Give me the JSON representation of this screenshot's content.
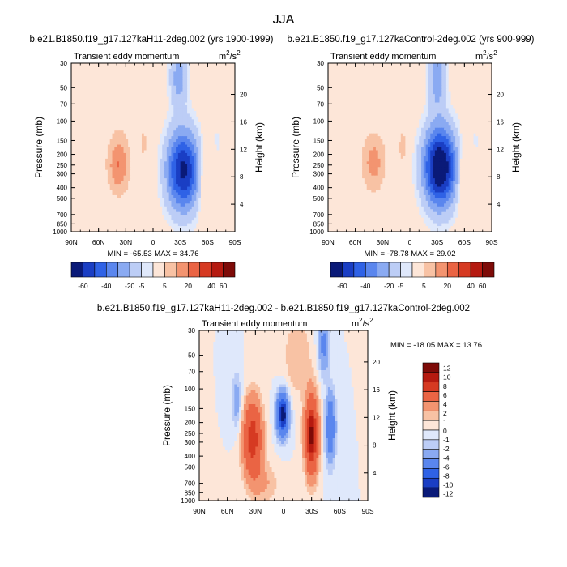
{
  "figure": {
    "title": "JJA"
  },
  "colors": {
    "palette": [
      "#0a1a78",
      "#1a3ec4",
      "#2f62e6",
      "#5a86ee",
      "#8aaaf2",
      "#bccdf6",
      "#dfe8fb",
      "#fde6d8",
      "#f8c2a4",
      "#f39470",
      "#ea6444",
      "#d63a22",
      "#b51a10",
      "#7e0b08"
    ],
    "axis": "#000000"
  },
  "chart_data": [
    {
      "type": "heatmap",
      "id": "panel-a",
      "title": "b.e21.B1850.f19_g17.127kaH11-2deg.002 (yrs 1900-1999)",
      "subtitle_left": "Transient eddy momentum",
      "units": "m²/s²",
      "units_base": "m",
      "units_mid": "/s",
      "units_sup": "2",
      "xlabel": "",
      "ylabel": "Pressure (mb)",
      "y2label": "Height (km)",
      "x_ticks": [
        "90N",
        "60N",
        "30N",
        "0",
        "30S",
        "60S",
        "90S"
      ],
      "y_ticks": [
        "30",
        "50",
        "70",
        "100",
        "150",
        "200",
        "250",
        "300",
        "400",
        "500",
        "700",
        "850",
        "1000"
      ],
      "y2_ticks": [
        "20",
        "16",
        "12",
        "8",
        "4"
      ],
      "stats": "MIN = -65.53   MAX =  34.76",
      "min": -65.53,
      "max": 34.76,
      "features": [
        {
          "lat": 38,
          "p": 250,
          "value": 30,
          "sx": 9,
          "sy": 0.45
        },
        {
          "lat": 10,
          "p": 160,
          "value": 12,
          "sx": 4,
          "sy": 0.3
        },
        {
          "lat": -33,
          "p": 280,
          "value": -63,
          "sx": 13,
          "sy": 0.6
        },
        {
          "lat": -28,
          "p": 40,
          "value": -25,
          "sx": 7,
          "sy": 0.45
        },
        {
          "lat": -58,
          "p": 320,
          "value": 18,
          "sx": 5,
          "sy": 0.55
        },
        {
          "lat": -70,
          "p": 150,
          "value": -5,
          "sx": 8,
          "sy": 0.6
        },
        {
          "lat": 30,
          "p": 50,
          "value": 3,
          "sx": 15,
          "sy": 0.9
        },
        {
          "lat": 75,
          "p": 200,
          "value": -3,
          "sx": 8,
          "sy": 1.0
        }
      ]
    },
    {
      "type": "heatmap",
      "id": "panel-b",
      "title": "b.e21.B1850.f19_g17.127kaControl-2deg.002 (yrs 900-999)",
      "subtitle_left": "Transient eddy momentum",
      "units": "m²/s²",
      "units_base": "m",
      "units_mid": "/s",
      "units_sup": "2",
      "xlabel": "",
      "ylabel": "Pressure (mb)",
      "y2label": "Height (km)",
      "x_ticks": [
        "90N",
        "60N",
        "30N",
        "0",
        "30S",
        "60S",
        "90S"
      ],
      "y_ticks": [
        "30",
        "50",
        "70",
        "100",
        "150",
        "200",
        "250",
        "300",
        "400",
        "500",
        "700",
        "850",
        "1000"
      ],
      "y2_ticks": [
        "20",
        "16",
        "12",
        "8",
        "4"
      ],
      "stats": "MIN = -78.78   MAX =  29.02",
      "min": -78.78,
      "max": 29.02,
      "features": [
        {
          "lat": 40,
          "p": 240,
          "value": 24,
          "sx": 10,
          "sy": 0.45
        },
        {
          "lat": 8,
          "p": 170,
          "value": 14,
          "sx": 4,
          "sy": 0.3
        },
        {
          "lat": -33,
          "p": 260,
          "value": -75,
          "sx": 13,
          "sy": 0.6
        },
        {
          "lat": -30,
          "p": 40,
          "value": -28,
          "sx": 7,
          "sy": 0.45
        },
        {
          "lat": -60,
          "p": 320,
          "value": 17,
          "sx": 5,
          "sy": 0.55
        },
        {
          "lat": -72,
          "p": 150,
          "value": -5,
          "sx": 8,
          "sy": 0.6
        },
        {
          "lat": 30,
          "p": 50,
          "value": 3,
          "sx": 15,
          "sy": 0.9
        },
        {
          "lat": 75,
          "p": 200,
          "value": -3,
          "sx": 8,
          "sy": 1.0
        }
      ]
    },
    {
      "type": "heatmap",
      "id": "panel-c",
      "title": "b.e21.B1850.f19_g17.127kaH11-2deg.002 - b.e21.B1850.f19_g17.127kaControl-2deg.002",
      "subtitle_left": "Transient eddy momentum",
      "units": "m²/s²",
      "units_base": "m",
      "units_mid": "/s",
      "units_sup": "2",
      "xlabel": "",
      "ylabel": "Pressure (mb)",
      "y2label": "Height (km)",
      "x_ticks": [
        "90N",
        "60N",
        "30N",
        "0",
        "30S",
        "60S",
        "90S"
      ],
      "y_ticks": [
        "30",
        "50",
        "70",
        "100",
        "150",
        "200",
        "250",
        "300",
        "400",
        "500",
        "700",
        "850",
        "1000"
      ],
      "y2_ticks": [
        "20",
        "16",
        "12",
        "8",
        "4"
      ],
      "stats": "MIN = -18.05   MAX =  13.76",
      "min": -18.05,
      "max": 13.76,
      "features": [
        {
          "lat": 33,
          "p": 280,
          "value": 10,
          "sx": 7,
          "sy": 0.55
        },
        {
          "lat": 1,
          "p": 170,
          "value": -14,
          "sx": 4.5,
          "sy": 0.3
        },
        {
          "lat": -30,
          "p": 260,
          "value": 13,
          "sx": 5,
          "sy": 0.55
        },
        {
          "lat": -50,
          "p": 220,
          "value": -7,
          "sx": 4,
          "sy": 0.5
        },
        {
          "lat": -43,
          "p": 40,
          "value": -5,
          "sx": 4,
          "sy": 0.4
        },
        {
          "lat": 50,
          "p": 130,
          "value": -3,
          "sx": 4,
          "sy": 0.4
        },
        {
          "lat": -15,
          "p": 50,
          "value": 2,
          "sx": 10,
          "sy": 0.6
        },
        {
          "lat": 20,
          "p": 700,
          "value": 2,
          "sx": 10,
          "sy": 0.3
        }
      ]
    }
  ],
  "colorbars": {
    "horizontal_labels": [
      "-60",
      "-40",
      "-20",
      "-5",
      "5",
      "20",
      "40",
      "60"
    ],
    "horizontal_levels": [
      -60,
      -50,
      -40,
      -30,
      -20,
      -10,
      -5,
      5,
      10,
      20,
      30,
      40,
      50,
      60
    ],
    "vertical_labels": [
      "12",
      "10",
      "8",
      "6",
      "4",
      "2",
      "1",
      "0",
      "-1",
      "-2",
      "-4",
      "-6",
      "-8",
      "-10",
      "-12"
    ],
    "vertical_levels": [
      -12,
      -10,
      -8,
      -6,
      -4,
      -2,
      -1,
      0,
      1,
      2,
      4,
      6,
      8,
      10,
      12
    ]
  }
}
